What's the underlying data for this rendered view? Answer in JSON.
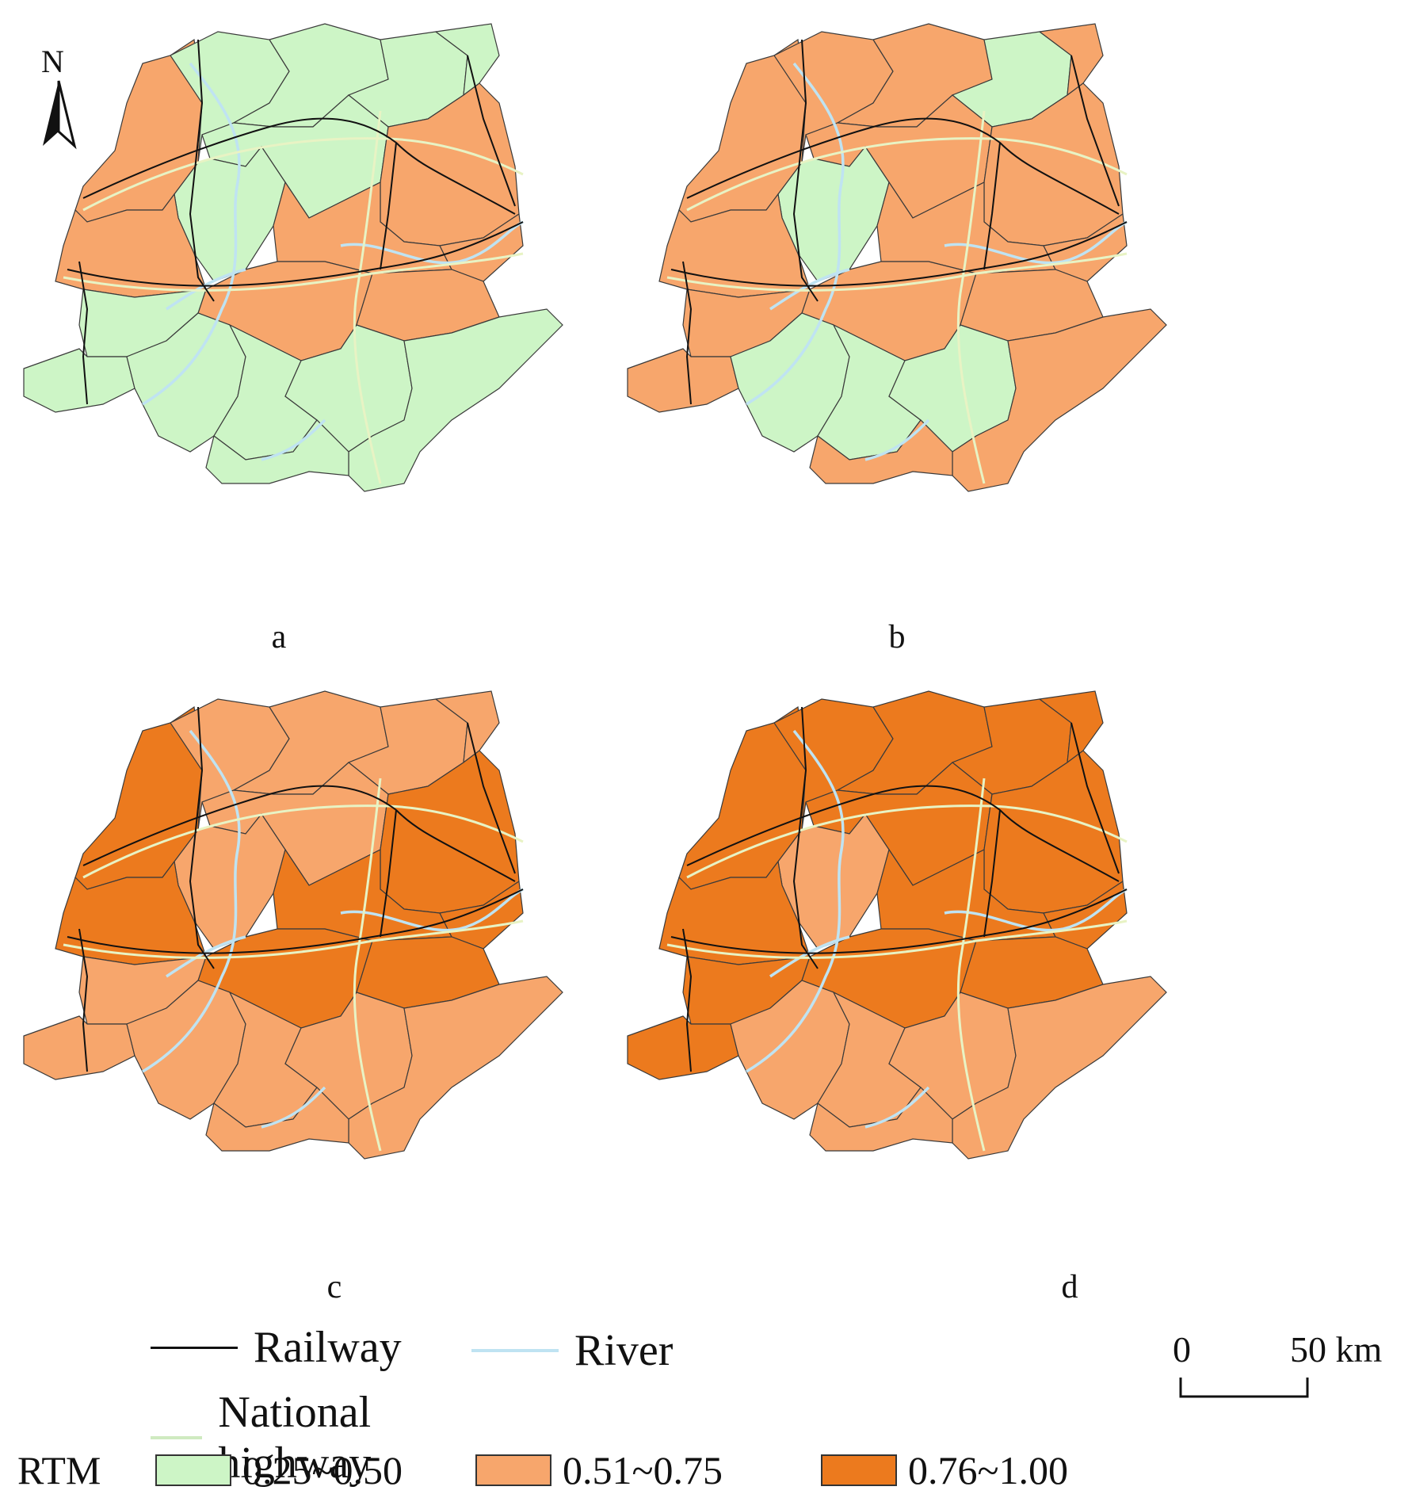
{
  "north_label": "N",
  "panels": [
    {
      "label": "a"
    },
    {
      "label": "b"
    },
    {
      "label": "c"
    },
    {
      "label": "d"
    }
  ],
  "legend": {
    "railway": "Railway",
    "river": "River",
    "highway": "National highway",
    "rtm_title": "RTM",
    "classes": [
      {
        "range": "0.25~0.50",
        "color": "#cdf5c6"
      },
      {
        "range": "0.51~0.75",
        "color": "#f7a66c"
      },
      {
        "range": "0.76~1.00",
        "color": "#ec7a1e"
      }
    ]
  },
  "scale_bar": {
    "start": "0",
    "end": "50 km"
  },
  "colors": {
    "railway": "#111111",
    "river": "#bfe3f2",
    "highway": "#e8f3c4",
    "border": "#3a3a3a"
  }
}
